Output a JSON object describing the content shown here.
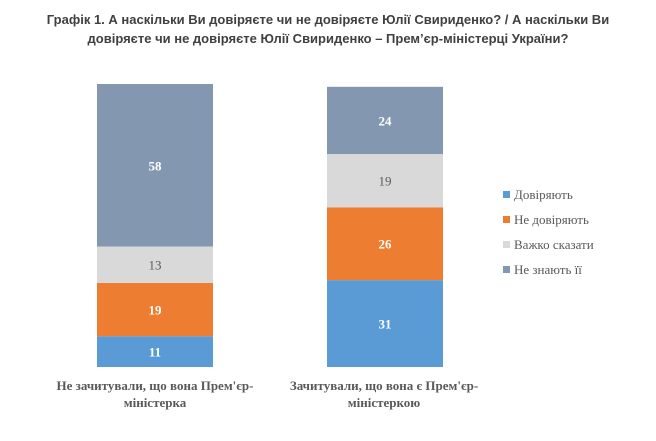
{
  "chart_data": {
    "type": "bar",
    "stacked": true,
    "title_lines": [
      "Графік 1. А наскільки Ви довіряєте чи не довіряєте Юлії Свириденко? / А наскільки Ви",
      "довіряєте чи не довіряєте Юлії Свириденко – Прем’єр-міністерці України?"
    ],
    "categories": [
      "Не зачитували, що вона Прем'єр-міністерка",
      "Зачитували, що вона є Прем'єр-міністеркою"
    ],
    "series": [
      {
        "name": "Довіряють",
        "values": [
          11,
          31
        ],
        "color": "#5B9BD5",
        "label_color": "#ffffff"
      },
      {
        "name": "Не довіряють",
        "values": [
          19,
          26
        ],
        "color": "#ED7D31",
        "label_color": "#ffffff"
      },
      {
        "name": "Важко сказати",
        "values": [
          13,
          19
        ],
        "color": "#D9D9D9",
        "label_color": "#595959"
      },
      {
        "name": "Не знають її",
        "values": [
          58,
          24
        ],
        "color": "#8497B0",
        "label_color": "#ffffff"
      }
    ],
    "legend_position": "right",
    "grid": false
  }
}
